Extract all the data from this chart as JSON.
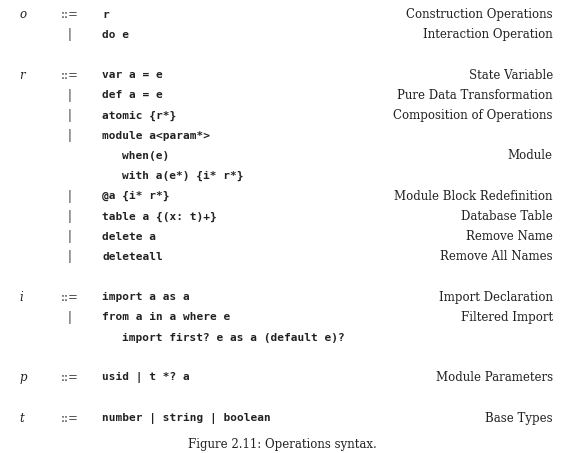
{
  "title": "Figure 2.11: Operations syntax.",
  "background_color": "#ffffff",
  "text_color": "#222222",
  "figsize": [
    5.64,
    4.53
  ],
  "dpi": 100,
  "fs_serif": 8.5,
  "fs_mono": 8.0,
  "fs_caption": 8.5,
  "rows": [
    {
      "lhs": "o",
      "op": "::=",
      "code": "r",
      "desc": "Construction Operations",
      "y": 0
    },
    {
      "lhs": "",
      "op": "|",
      "code": "do e",
      "desc": "Interaction Operation",
      "y": 1
    },
    {
      "lhs": "r",
      "op": "::=",
      "code": "var a = e",
      "desc": "State Variable",
      "y": 3
    },
    {
      "lhs": "",
      "op": "|",
      "code": "def a = e",
      "desc": "Pure Data Transformation",
      "y": 4
    },
    {
      "lhs": "",
      "op": "|",
      "code": "atomic {r*}",
      "desc": "Composition of Operations",
      "y": 5
    },
    {
      "lhs": "",
      "op": "|",
      "code": "module a<param*>",
      "desc": "",
      "y": 6
    },
    {
      "lhs": "",
      "op": "",
      "code": "when(e)",
      "desc": "Module",
      "y": 7,
      "indent": true
    },
    {
      "lhs": "",
      "op": "",
      "code": "with a(e*) {i* r*}",
      "desc": "",
      "y": 8,
      "indent": true
    },
    {
      "lhs": "",
      "op": "|",
      "code": "@a {i* r*}",
      "desc": "Module Block Redefinition",
      "y": 9
    },
    {
      "lhs": "",
      "op": "|",
      "code": "table a {(x: t)+}",
      "desc": "Database Table",
      "y": 10
    },
    {
      "lhs": "",
      "op": "|",
      "code": "delete a",
      "desc": "Remove Name",
      "y": 11
    },
    {
      "lhs": "",
      "op": "|",
      "code": "deleteall",
      "desc": "Remove All Names",
      "y": 12
    },
    {
      "lhs": "i",
      "op": "::=",
      "code": "import a as a",
      "desc": "Import Declaration",
      "y": 14
    },
    {
      "lhs": "",
      "op": "|",
      "code": "from a in a where e",
      "desc": "Filtered Import",
      "y": 15
    },
    {
      "lhs": "",
      "op": "",
      "code": "import first? e as a (default e)?",
      "desc": "",
      "y": 16,
      "indent": true
    },
    {
      "lhs": "p",
      "op": "::=",
      "code": "usid | t *? a",
      "desc": "Module Parameters",
      "y": 18
    },
    {
      "lhs": "t",
      "op": "::=",
      "code": "number | string | boolean",
      "desc": "Base Types",
      "y": 20
    }
  ]
}
